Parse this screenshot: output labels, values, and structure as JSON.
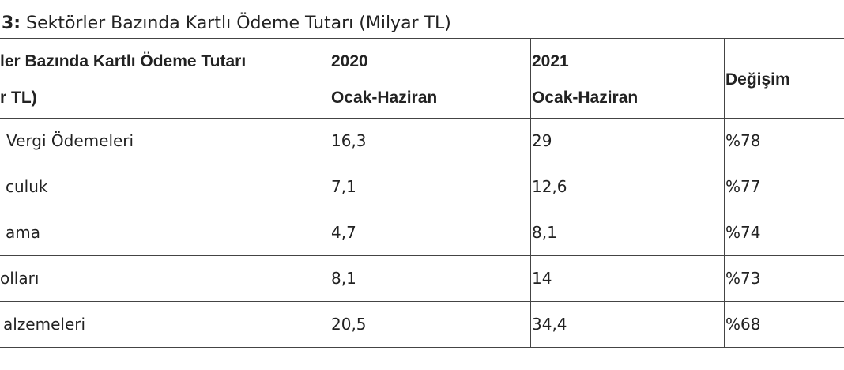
{
  "title": {
    "label": "3:",
    "text": "Sektörler Bazında Kartlı Ödeme Tutarı (Milyar TL)"
  },
  "table": {
    "header": [
      [
        "ler Bazında Kartlı Ödeme Tutarı",
        "r TL)"
      ],
      [
        "2020",
        "Ocak-Haziran"
      ],
      [
        "2021",
        "Ocak-Haziran"
      ],
      [
        "Değişim"
      ]
    ],
    "rows": [
      [
        "Vergi Ödemeleri",
        "16,3",
        "29",
        "%78"
      ],
      [
        "culuk",
        "7,1",
        "12,6",
        "%77"
      ],
      [
        "ama",
        "4,7",
        "8,1",
        "%74"
      ],
      [
        "olları",
        "8,1",
        "14",
        "%73"
      ],
      [
        "alzemeleri",
        "20,5",
        "34,4",
        "%68"
      ]
    ]
  }
}
